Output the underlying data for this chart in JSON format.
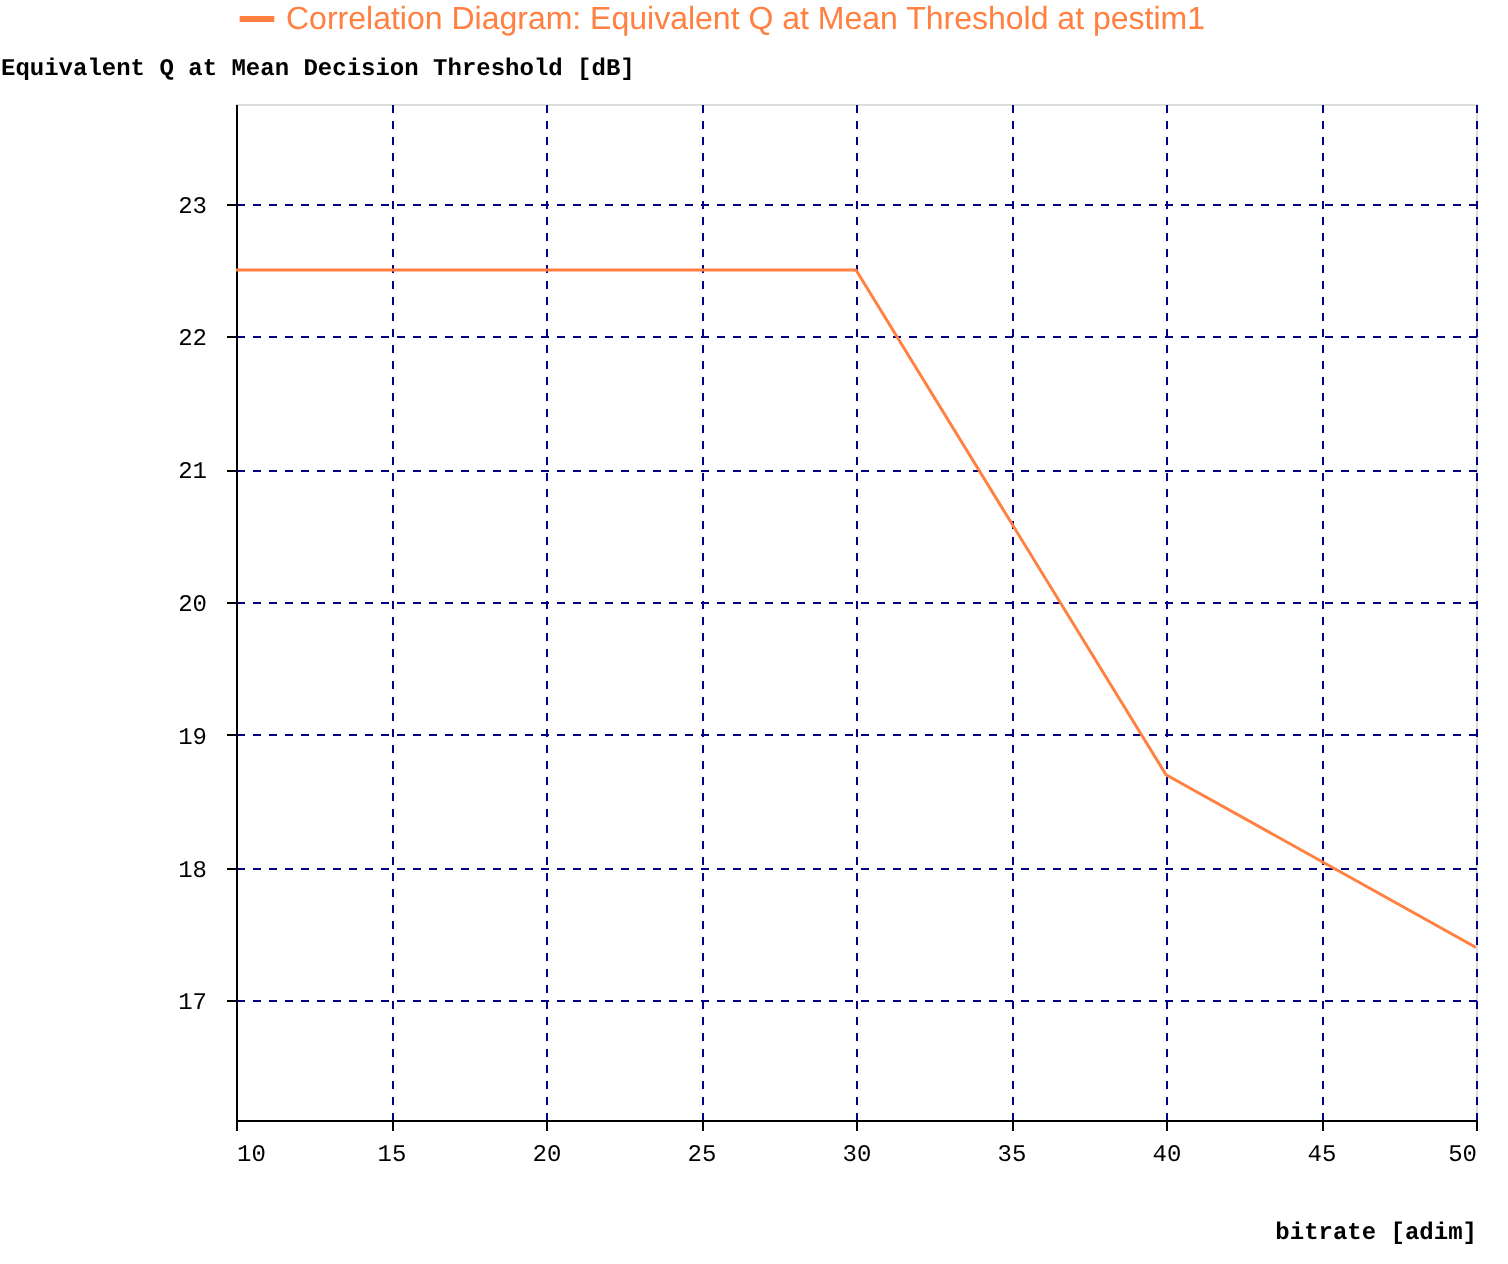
{
  "chart_data": {
    "type": "line",
    "xlabel": "bitrate [adim]",
    "ylabel": "Equivalent Q at Mean Decision Threshold  [dB]",
    "x": [
      10,
      30,
      40,
      50
    ],
    "series": [
      {
        "name": "Correlation Diagram: Equivalent Q at Mean Threshold at pestim1",
        "color": "#ff8040",
        "values": [
          22.5,
          22.5,
          18.7,
          17.4
        ]
      }
    ],
    "xlim": [
      10,
      50
    ],
    "xticks": [
      10,
      15,
      20,
      25,
      30,
      35,
      40,
      45,
      50
    ],
    "ylim": [
      16.1,
      23.75
    ],
    "yticks": [
      17,
      18,
      19,
      20,
      21,
      22,
      23
    ],
    "grid": true,
    "legend": "top",
    "marker": "none",
    "line_style": "solid"
  }
}
